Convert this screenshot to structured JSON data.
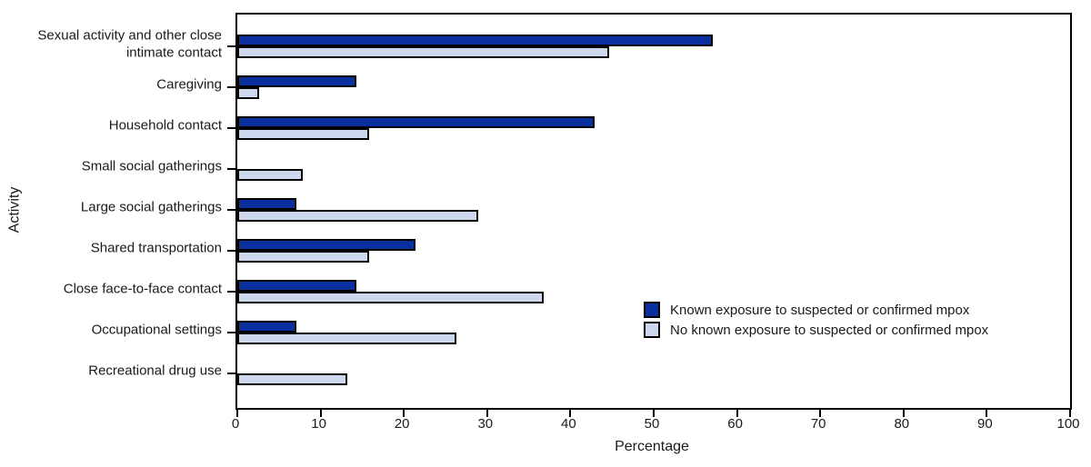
{
  "chart_data": {
    "type": "bar",
    "orientation": "horizontal",
    "title": "",
    "xlabel": "Percentage",
    "ylabel": "Activity",
    "xlim": [
      0,
      100
    ],
    "xticks": [
      0,
      10,
      20,
      30,
      40,
      50,
      60,
      70,
      80,
      90,
      100
    ],
    "grid": false,
    "legend_position": "inside-right-middle",
    "bar_border_color": "#000000",
    "frame_color": "#000000",
    "categories": [
      "Sexual activity and other close intimate contact",
      "Caregiving",
      "Household contact",
      "Small social gatherings",
      "Large social gatherings",
      "Shared transportation",
      "Close face-to-face contact",
      "Occupational settings",
      "Recreational drug use"
    ],
    "series": [
      {
        "name": "Known exposure to suspected or confirmed mpox",
        "color": "#0a2f9e",
        "values": [
          57.1,
          14.3,
          42.9,
          0,
          7.1,
          21.4,
          14.3,
          7.1,
          0
        ]
      },
      {
        "name": "No known exposure to suspected or confirmed mpox",
        "color": "#cdd8ee",
        "values": [
          44.7,
          2.6,
          15.8,
          7.9,
          28.9,
          15.8,
          36.8,
          26.3,
          13.2
        ]
      }
    ]
  }
}
